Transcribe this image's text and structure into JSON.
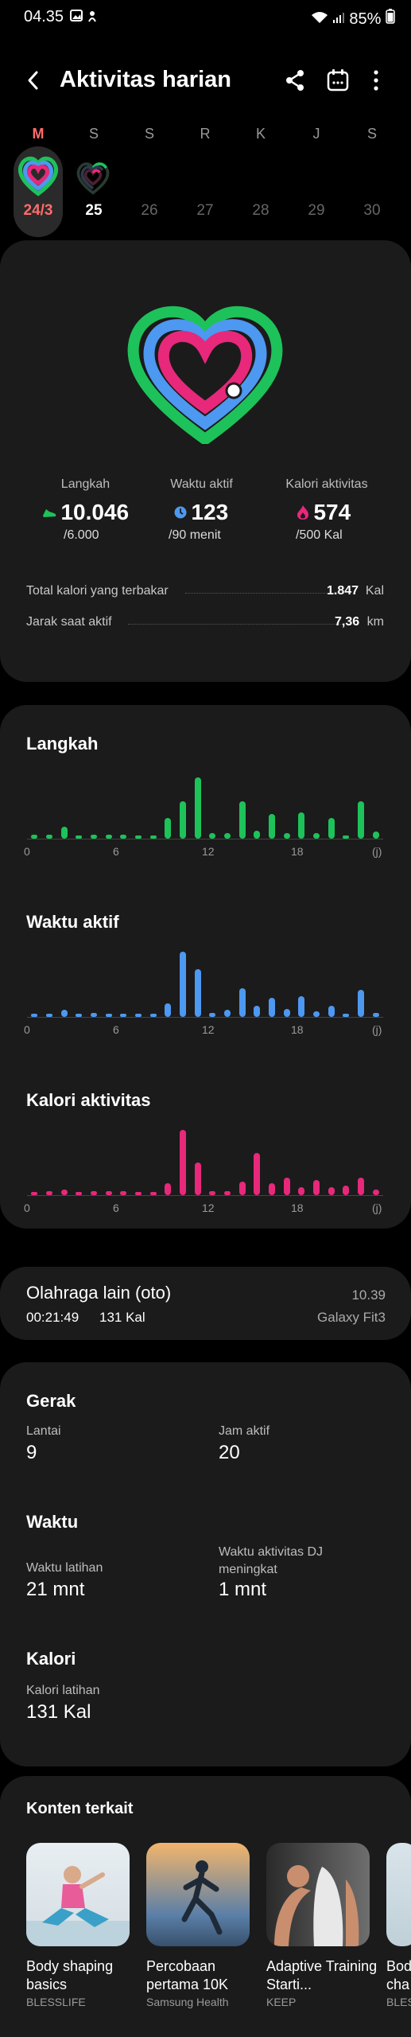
{
  "status_bar": {
    "time": "04.35",
    "battery": "85%"
  },
  "header": {
    "title": "Aktivitas harian"
  },
  "days": [
    {
      "letter": "M",
      "number": "24/3"
    },
    {
      "letter": "S",
      "number": "25"
    },
    {
      "letter": "S",
      "number": "26"
    },
    {
      "letter": "R",
      "number": "27"
    },
    {
      "letter": "K",
      "number": "28"
    },
    {
      "letter": "J",
      "number": "29"
    },
    {
      "letter": "S",
      "number": "30"
    }
  ],
  "summary": {
    "steps": {
      "label": "Langkah",
      "value": "10.046",
      "goal": "/6.000"
    },
    "active_time": {
      "label": "Waktu aktif",
      "value": "123",
      "goal": "/90 menit"
    },
    "calories": {
      "label": "Kalori aktivitas",
      "value": "574",
      "goal": "/500 Kal"
    },
    "total_calories": {
      "label": "Total kalori yang terbakar",
      "value": "1.847",
      "unit": "Kal"
    },
    "distance": {
      "label": "Jarak saat aktif",
      "value": "7,36",
      "unit": "km"
    }
  },
  "colors": {
    "steps": "#1ec25a",
    "active": "#4d98f0",
    "calories": "#e8287a",
    "accent_red": "#ff6b6b"
  },
  "chart_data": [
    {
      "type": "bar",
      "title": "Langkah",
      "x": [
        0,
        1,
        2,
        3,
        4,
        5,
        6,
        7,
        8,
        9,
        10,
        11,
        12,
        13,
        14,
        15,
        16,
        17,
        18,
        19,
        20,
        21,
        22,
        23
      ],
      "values": [
        0.06,
        0.06,
        0.18,
        0.02,
        0.06,
        0.06,
        0.06,
        0.02,
        0.02,
        0.3,
        0.55,
        0.9,
        0.08,
        0.08,
        0.55,
        0.12,
        0.36,
        0.08,
        0.38,
        0.08,
        0.3,
        0.05,
        0.55,
        0.1
      ],
      "xticks": [
        "0",
        "6",
        "12",
        "18",
        "(j)"
      ]
    },
    {
      "type": "bar",
      "title": "Waktu aktif",
      "x": [
        0,
        1,
        2,
        3,
        4,
        5,
        6,
        7,
        8,
        9,
        10,
        11,
        12,
        13,
        14,
        15,
        16,
        17,
        18,
        19,
        20,
        21,
        22,
        23
      ],
      "values": [
        0.02,
        0.02,
        0.1,
        0.02,
        0.06,
        0.02,
        0.02,
        0.02,
        0.02,
        0.2,
        0.95,
        0.7,
        0.06,
        0.1,
        0.42,
        0.16,
        0.28,
        0.12,
        0.3,
        0.08,
        0.16,
        0.04,
        0.4,
        0.06
      ],
      "xticks": [
        "0",
        "6",
        "12",
        "18",
        "(j)"
      ]
    },
    {
      "type": "bar",
      "title": "Kalori aktivitas",
      "x": [
        0,
        1,
        2,
        3,
        4,
        5,
        6,
        7,
        8,
        9,
        10,
        11,
        12,
        13,
        14,
        15,
        16,
        17,
        18,
        19,
        20,
        21,
        22,
        23
      ],
      "values": [
        0.05,
        0.06,
        0.08,
        0.02,
        0.06,
        0.06,
        0.06,
        0.02,
        0.02,
        0.18,
        0.95,
        0.48,
        0.06,
        0.06,
        0.2,
        0.62,
        0.18,
        0.26,
        0.12,
        0.22,
        0.12,
        0.14,
        0.26,
        0.08
      ],
      "xticks": [
        "0",
        "6",
        "12",
        "18",
        "(j)"
      ]
    }
  ],
  "workout": {
    "title": "Olahraga lain (oto)",
    "duration": "00:21:49",
    "calories": "131 Kal",
    "time": "10.39",
    "device": "Galaxy Fit3"
  },
  "gerak": {
    "title": "Gerak",
    "floors_label": "Lantai",
    "floors": "9",
    "active_hours_label": "Jam aktif",
    "active_hours": "20"
  },
  "waktu": {
    "title": "Waktu",
    "workout_time_label": "Waktu latihan",
    "workout_time": "21 mnt",
    "hr_label": "Waktu aktivitas DJ meningkat",
    "hr_value": "1 mnt"
  },
  "kalori": {
    "title": "Kalori",
    "workout_cal_label": "Kalori latihan",
    "workout_cal": "131 Kal"
  },
  "related": {
    "title": "Konten terkait",
    "items": [
      {
        "title": "Body shaping basics",
        "source": "BLESSLIFE"
      },
      {
        "title": "Percobaan pertama 10K",
        "source": "Samsung Health"
      },
      {
        "title": "Adaptive Training Starti...",
        "source": "KEEP"
      },
      {
        "title": "Bod cha",
        "source": "BLES"
      }
    ]
  }
}
